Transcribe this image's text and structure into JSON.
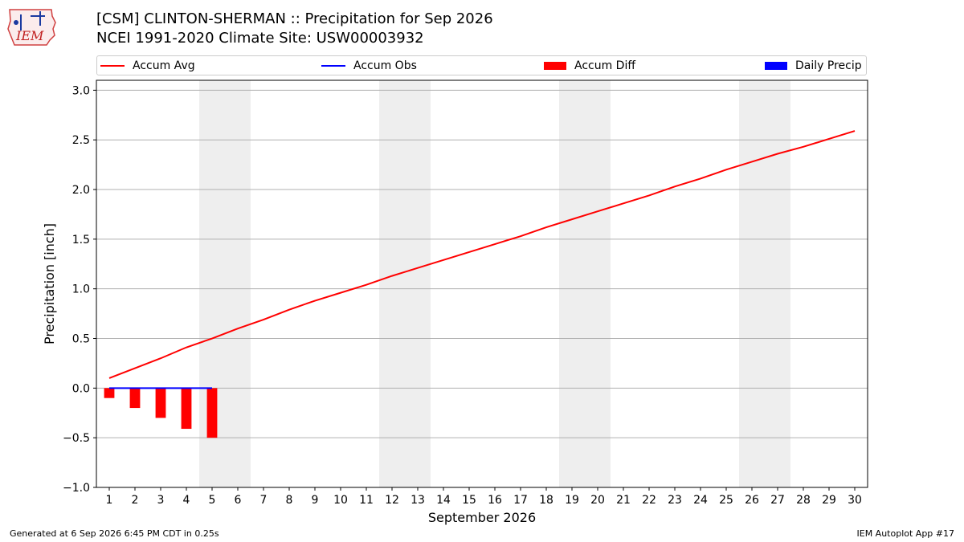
{
  "header": {
    "title_line1": "[CSM] CLINTON-SHERMAN :: Precipitation for Sep 2026",
    "title_line2": "NCEI 1991-2020 Climate Site: USW00003932",
    "logo_text": "IEM"
  },
  "footer": {
    "left": "Generated at 6 Sep 2026 6:45 PM CDT in 0.25s",
    "right": "IEM Autoplot App #17"
  },
  "colors": {
    "accum_avg": "#ff0000",
    "accum_obs": "#0000ff",
    "accum_diff": "#ff0000",
    "daily_precip": "#0000ff",
    "weekend_shade": "#eeeeee",
    "grid": "#b0b0b0"
  },
  "chart_data": {
    "type": "line",
    "xlabel": "September 2026",
    "ylabel": "Precipitation [inch]",
    "ylim": [
      -1.0,
      3.1
    ],
    "yticks": [
      -1.0,
      -0.5,
      0.0,
      0.5,
      1.0,
      1.5,
      2.0,
      2.5,
      3.0
    ],
    "ytick_labels": [
      "−1.0",
      "−0.5",
      "0.0",
      "0.5",
      "1.0",
      "1.5",
      "2.0",
      "2.5",
      "3.0"
    ],
    "xlim": [
      0.5,
      30.5
    ],
    "x_ticks": [
      1,
      2,
      3,
      4,
      5,
      6,
      7,
      8,
      9,
      10,
      11,
      12,
      13,
      14,
      15,
      16,
      17,
      18,
      19,
      20,
      21,
      22,
      23,
      24,
      25,
      26,
      27,
      28,
      29,
      30
    ],
    "x_tick_labels": [
      "1",
      "2",
      "3",
      "4",
      "5",
      "6",
      "7",
      "8",
      "9",
      "10",
      "11",
      "12",
      "13",
      "14",
      "15",
      "16",
      "17",
      "18",
      "19",
      "20",
      "21",
      "22",
      "23",
      "24",
      "25",
      "26",
      "27",
      "28",
      "29",
      "30"
    ],
    "grid": "horizontal",
    "legend_position": "top",
    "weekend_spans": [
      [
        5,
        6
      ],
      [
        12,
        13
      ],
      [
        19,
        20
      ],
      [
        26,
        27
      ]
    ],
    "series": [
      {
        "name": "Accum Avg",
        "kind": "line",
        "x": [
          1,
          2,
          3,
          4,
          5,
          6,
          7,
          8,
          9,
          10,
          11,
          12,
          13,
          14,
          15,
          16,
          17,
          18,
          19,
          20,
          21,
          22,
          23,
          24,
          25,
          26,
          27,
          28,
          29,
          30
        ],
        "values": [
          0.1,
          0.2,
          0.3,
          0.41,
          0.5,
          0.6,
          0.69,
          0.79,
          0.88,
          0.96,
          1.04,
          1.13,
          1.21,
          1.29,
          1.37,
          1.45,
          1.53,
          1.62,
          1.7,
          1.78,
          1.86,
          1.94,
          2.03,
          2.11,
          2.2,
          2.28,
          2.36,
          2.43,
          2.51,
          2.59
        ]
      },
      {
        "name": "Accum Obs",
        "kind": "line",
        "x": [
          1,
          2,
          3,
          4,
          5
        ],
        "values": [
          0.0,
          0.0,
          0.0,
          0.0,
          0.0
        ]
      },
      {
        "name": "Accum Diff",
        "kind": "bar",
        "x": [
          1,
          2,
          3,
          4,
          5
        ],
        "values": [
          -0.1,
          -0.2,
          -0.3,
          -0.41,
          -0.5
        ]
      },
      {
        "name": "Daily Precip",
        "kind": "bar",
        "x": [
          1,
          2,
          3,
          4,
          5
        ],
        "values": [
          0.0,
          0.0,
          0.0,
          0.0,
          0.0
        ]
      }
    ]
  }
}
